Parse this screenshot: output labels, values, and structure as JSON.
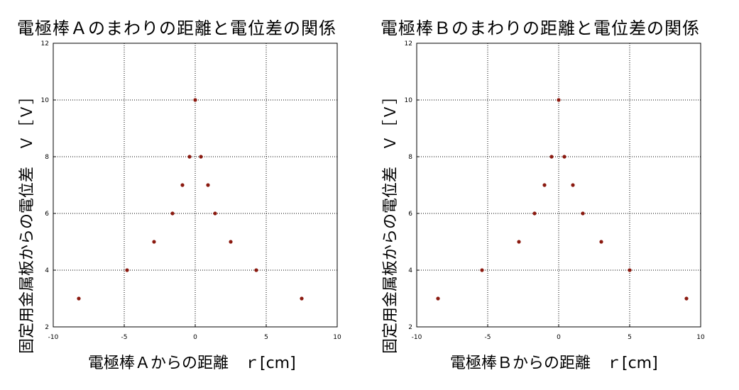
{
  "chart_data": [
    {
      "type": "scatter",
      "title": "電極棒Ａのまわりの距離と電位差の関係",
      "xlabel": "電極棒Ａからの距離　ｒ[cm]",
      "ylabel": "固定用金属板からの電位差　Ｖ［Ｖ］",
      "xlim": [
        -10,
        10
      ],
      "ylim": [
        2,
        12
      ],
      "xticks": [
        -10,
        -5,
        0,
        5,
        10
      ],
      "yticks": [
        2,
        4,
        6,
        8,
        10,
        12
      ],
      "grid": true,
      "marker_color": "#8b1a10",
      "points": [
        {
          "x": -8.2,
          "y": 3
        },
        {
          "x": -4.8,
          "y": 4
        },
        {
          "x": -2.9,
          "y": 5
        },
        {
          "x": -1.6,
          "y": 6
        },
        {
          "x": -0.9,
          "y": 7
        },
        {
          "x": -0.4,
          "y": 8
        },
        {
          "x": 0.0,
          "y": 10
        },
        {
          "x": 0.4,
          "y": 8
        },
        {
          "x": 0.9,
          "y": 7
        },
        {
          "x": 1.4,
          "y": 6
        },
        {
          "x": 2.5,
          "y": 5
        },
        {
          "x": 4.3,
          "y": 4
        },
        {
          "x": 7.5,
          "y": 3
        }
      ]
    },
    {
      "type": "scatter",
      "title": "電極棒Ｂのまわりの距離と電位差の関係",
      "xlabel": "電極棒Ｂからの距離　ｒ[cm]",
      "ylabel": "固定用金属板からの電位差　Ｖ［Ｖ］",
      "xlim": [
        -10,
        10
      ],
      "ylim": [
        2,
        12
      ],
      "xticks": [
        -10,
        -5,
        0,
        5,
        10
      ],
      "yticks": [
        2,
        4,
        6,
        8,
        10,
        12
      ],
      "grid": true,
      "marker_color": "#8b1a10",
      "points": [
        {
          "x": -8.5,
          "y": 3
        },
        {
          "x": -5.4,
          "y": 4
        },
        {
          "x": -2.8,
          "y": 5
        },
        {
          "x": -1.7,
          "y": 6
        },
        {
          "x": -1.0,
          "y": 7
        },
        {
          "x": -0.5,
          "y": 8
        },
        {
          "x": 0.0,
          "y": 10
        },
        {
          "x": 0.4,
          "y": 8
        },
        {
          "x": 1.0,
          "y": 7
        },
        {
          "x": 1.7,
          "y": 6
        },
        {
          "x": 3.0,
          "y": 5
        },
        {
          "x": 5.0,
          "y": 4
        },
        {
          "x": 9.0,
          "y": 3
        }
      ]
    }
  ]
}
